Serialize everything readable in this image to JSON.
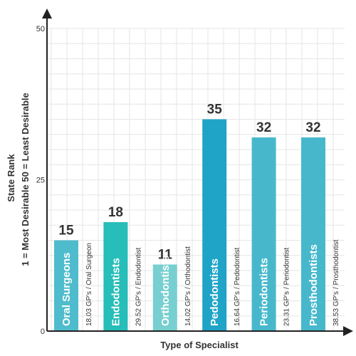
{
  "chart_data": {
    "type": "bar",
    "title": "",
    "xlabel": "Type of Specialist",
    "ylabel": "State Rank",
    "ylabel_note": "1 = Most Desirable    50 = Least Desirable",
    "ylim": [
      0,
      50
    ],
    "yticks": [
      0,
      25,
      50
    ],
    "grid": true,
    "categories": [
      "Oral Surgeons",
      "Endodontists",
      "Orthodontists",
      "Pedodontists",
      "Periodontists",
      "Prosthodontists"
    ],
    "values": [
      15,
      18,
      11,
      35,
      32,
      32
    ],
    "ratios": [
      "18.03 GP's / Oral Surgeon",
      "29.52 GP's / Endodontist",
      "14.02 GP's / Orthodontist",
      "16.64 GP's / Pedodontist",
      "23.31 GP's / Periodontist",
      "38.53 GP's / Prosthodontist"
    ],
    "colors": [
      "#4fbccd",
      "#27bdb9",
      "#77cfd0",
      "#1fa4c8",
      "#47b8cc",
      "#47b8cc"
    ]
  }
}
